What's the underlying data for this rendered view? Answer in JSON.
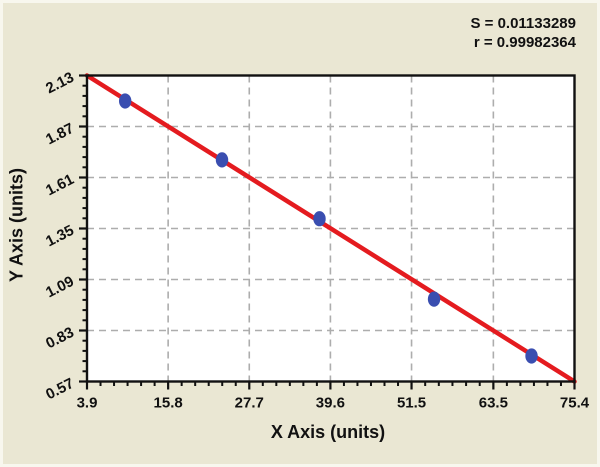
{
  "page": {
    "background": "#EAE7D3"
  },
  "chart_data": {
    "type": "scatter",
    "title": "",
    "xlabel": "X Axis (units)",
    "ylabel": "Y Axis (units)",
    "xlim": [
      3.9,
      75.4
    ],
    "ylim": [
      0.57,
      2.13
    ],
    "x_ticks": [
      3.9,
      15.8,
      27.7,
      39.6,
      51.5,
      63.5,
      75.4
    ],
    "x_tick_labels": [
      "3.9",
      "15.8",
      "27.7",
      "39.6",
      "51.5",
      "63.5",
      "75.4"
    ],
    "y_ticks": [
      0.57,
      0.83,
      1.09,
      1.35,
      1.61,
      1.87,
      2.13
    ],
    "y_tick_labels": [
      "0.57",
      "0.83",
      "1.09",
      "1.35",
      "1.61",
      "1.87",
      "2.13"
    ],
    "x_minor_divisions": 6,
    "y_minor_divisions": 5,
    "grid": "dashed",
    "legend": "none",
    "points": [
      {
        "x": 9.5,
        "y": 2.0
      },
      {
        "x": 23.7,
        "y": 1.7
      },
      {
        "x": 38.0,
        "y": 1.4
      },
      {
        "x": 54.8,
        "y": 0.99
      },
      {
        "x": 69.1,
        "y": 0.7
      }
    ],
    "fit_line": {
      "x1": 3.9,
      "y1": 2.13,
      "x2": 75.4,
      "y2": 0.57
    },
    "annotations": [
      "S = 0.01133289",
      "r = 0.99982364"
    ],
    "colors": {
      "line": "#E41B1F",
      "point": "#3A4EB0",
      "grid": "#ADADAD",
      "axis": "#111111",
      "plot_bg": "#FFFFFF",
      "page_bg": "#EAE7D3"
    }
  }
}
